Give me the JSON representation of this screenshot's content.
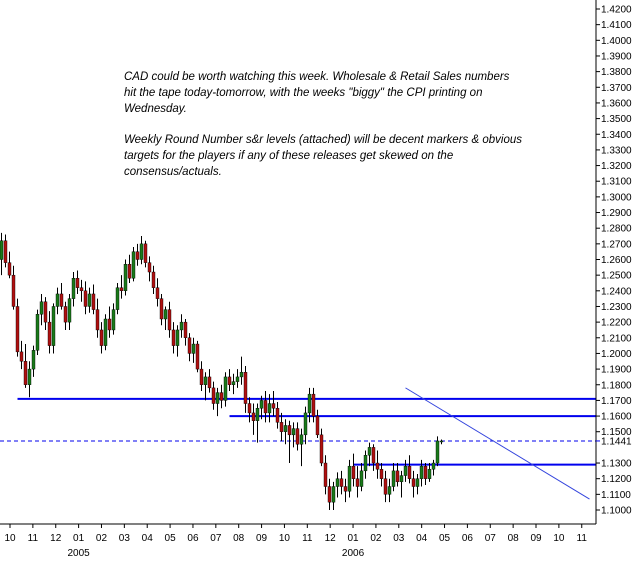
{
  "chart_data": {
    "type": "candlestick",
    "title": "",
    "notes": [
      "CAD could be worth watching this week. Wholesale & Retail Sales numbers hit the tape today-tomorrow, with the weeks \"biggy\" the CPI printing on Wednesday.",
      "Weekly Round Number s&r levels (attached) will be decent markers & obvious targets for the players if any of these releases get skewed on the consensus/actuals."
    ],
    "y_axis": {
      "side": "right",
      "ylim": [
        1.085,
        1.425
      ],
      "ticks": [
        "1.4200",
        "1.4100",
        "1.4000",
        "1.3900",
        "1.3800",
        "1.3700",
        "1.3600",
        "1.3500",
        "1.3400",
        "1.3300",
        "1.3200",
        "1.3100",
        "1.3000",
        "1.2900",
        "1.2800",
        "1.2700",
        "1.2600",
        "1.2500",
        "1.2400",
        "1.2300",
        "1.2200",
        "1.2100",
        "1.2000",
        "1.1900",
        "1.1800",
        "1.1700",
        "1.1600",
        "1.1500",
        "1.1441",
        "1.1300",
        "1.1200",
        "1.1100",
        "1.1000"
      ],
      "current_price": "1.1441"
    },
    "x_axis": {
      "months": [
        "10",
        "11",
        "12",
        "01",
        "02",
        "03",
        "04",
        "05",
        "06",
        "07",
        "08",
        "09",
        "10",
        "11",
        "12",
        "01",
        "02",
        "03",
        "04",
        "05",
        "06",
        "07",
        "08",
        "09",
        "10",
        "11"
      ],
      "years": [
        {
          "label": "2005",
          "month_index": 3
        },
        {
          "label": "2006",
          "month_index": 15
        }
      ]
    },
    "grid": false,
    "horizontal_levels": [
      {
        "value": 1.171,
        "from_bar": 4
      },
      {
        "value": 1.16,
        "from_bar": 57
      },
      {
        "value": 1.129,
        "from_bar": 88
      },
      {
        "value": 1.1441,
        "from_bar": 0,
        "style": "dashed",
        "label": "current"
      }
    ],
    "trendline": {
      "from": {
        "bar": 101,
        "value": 1.178
      },
      "to": {
        "bar": 147,
        "value": 1.107
      }
    },
    "colors": {
      "up": "#1a7a1a",
      "down": "#b01010",
      "level": "#0000ee",
      "trend": "#3344dd",
      "axis": "#000000"
    },
    "candles": [
      [
        1.26,
        1.277,
        1.25,
        1.272
      ],
      [
        1.272,
        1.276,
        1.255,
        1.258
      ],
      [
        1.258,
        1.265,
        1.248,
        1.25
      ],
      [
        1.25,
        1.256,
        1.228,
        1.23
      ],
      [
        1.23,
        1.235,
        1.198,
        1.201
      ],
      [
        1.201,
        1.208,
        1.19,
        1.195
      ],
      [
        1.195,
        1.206,
        1.178,
        1.18
      ],
      [
        1.18,
        1.195,
        1.172,
        1.19
      ],
      [
        1.19,
        1.205,
        1.185,
        1.202
      ],
      [
        1.202,
        1.228,
        1.199,
        1.225
      ],
      [
        1.225,
        1.238,
        1.218,
        1.233
      ],
      [
        1.233,
        1.236,
        1.215,
        1.22
      ],
      [
        1.22,
        1.227,
        1.2,
        1.205
      ],
      [
        1.205,
        1.232,
        1.2,
        1.23
      ],
      [
        1.23,
        1.242,
        1.225,
        1.238
      ],
      [
        1.238,
        1.245,
        1.228,
        1.23
      ],
      [
        1.23,
        1.233,
        1.215,
        1.22
      ],
      [
        1.22,
        1.238,
        1.215,
        1.235
      ],
      [
        1.235,
        1.252,
        1.23,
        1.248
      ],
      [
        1.248,
        1.253,
        1.238,
        1.242
      ],
      [
        1.242,
        1.247,
        1.233,
        1.24
      ],
      [
        1.24,
        1.246,
        1.225,
        1.23
      ],
      [
        1.23,
        1.242,
        1.226,
        1.238
      ],
      [
        1.238,
        1.244,
        1.225,
        1.228
      ],
      [
        1.228,
        1.235,
        1.21,
        1.215
      ],
      [
        1.215,
        1.22,
        1.2,
        1.205
      ],
      [
        1.205,
        1.225,
        1.202,
        1.222
      ],
      [
        1.222,
        1.23,
        1.21,
        1.215
      ],
      [
        1.215,
        1.232,
        1.212,
        1.228
      ],
      [
        1.228,
        1.245,
        1.225,
        1.242
      ],
      [
        1.242,
        1.25,
        1.235,
        1.24
      ],
      [
        1.24,
        1.26,
        1.237,
        1.257
      ],
      [
        1.257,
        1.263,
        1.245,
        1.248
      ],
      [
        1.248,
        1.268,
        1.246,
        1.265
      ],
      [
        1.265,
        1.27,
        1.256,
        1.26
      ],
      [
        1.26,
        1.275,
        1.257,
        1.27
      ],
      [
        1.27,
        1.272,
        1.255,
        1.258
      ],
      [
        1.258,
        1.262,
        1.246,
        1.252
      ],
      [
        1.252,
        1.256,
        1.238,
        1.242
      ],
      [
        1.242,
        1.248,
        1.23,
        1.235
      ],
      [
        1.235,
        1.238,
        1.218,
        1.222
      ],
      [
        1.222,
        1.23,
        1.215,
        1.228
      ],
      [
        1.228,
        1.233,
        1.21,
        1.215
      ],
      [
        1.215,
        1.22,
        1.2,
        1.205
      ],
      [
        1.205,
        1.218,
        1.198,
        1.215
      ],
      [
        1.215,
        1.225,
        1.21,
        1.22
      ],
      [
        1.22,
        1.222,
        1.205,
        1.21
      ],
      [
        1.21,
        1.213,
        1.195,
        1.2
      ],
      [
        1.2,
        1.21,
        1.194,
        1.206
      ],
      [
        1.206,
        1.208,
        1.188,
        1.19
      ],
      [
        1.19,
        1.195,
        1.176,
        1.18
      ],
      [
        1.18,
        1.188,
        1.17,
        1.185
      ],
      [
        1.185,
        1.19,
        1.175,
        1.178
      ],
      [
        1.178,
        1.182,
        1.164,
        1.168
      ],
      [
        1.168,
        1.178,
        1.16,
        1.175
      ],
      [
        1.175,
        1.18,
        1.165,
        1.17
      ],
      [
        1.17,
        1.188,
        1.166,
        1.185
      ],
      [
        1.185,
        1.19,
        1.176,
        1.18
      ],
      [
        1.18,
        1.187,
        1.174,
        1.182
      ],
      [
        1.182,
        1.19,
        1.178,
        1.185
      ],
      [
        1.185,
        1.198,
        1.18,
        1.188
      ],
      [
        1.188,
        1.192,
        1.162,
        1.168
      ],
      [
        1.168,
        1.172,
        1.156,
        1.162
      ],
      [
        1.162,
        1.168,
        1.148,
        1.157
      ],
      [
        1.157,
        1.168,
        1.143,
        1.165
      ],
      [
        1.165,
        1.173,
        1.158,
        1.17
      ],
      [
        1.17,
        1.176,
        1.156,
        1.162
      ],
      [
        1.162,
        1.174,
        1.156,
        1.168
      ],
      [
        1.168,
        1.176,
        1.16,
        1.165
      ],
      [
        1.165,
        1.169,
        1.152,
        1.156
      ],
      [
        1.156,
        1.162,
        1.144,
        1.15
      ],
      [
        1.15,
        1.158,
        1.142,
        1.154
      ],
      [
        1.154,
        1.157,
        1.13,
        1.148
      ],
      [
        1.148,
        1.156,
        1.14,
        1.152
      ],
      [
        1.152,
        1.156,
        1.138,
        1.142
      ],
      [
        1.142,
        1.152,
        1.128,
        1.148
      ],
      [
        1.148,
        1.166,
        1.142,
        1.162
      ],
      [
        1.162,
        1.178,
        1.156,
        1.174
      ],
      [
        1.174,
        1.178,
        1.156,
        1.16
      ],
      [
        1.16,
        1.164,
        1.146,
        1.148
      ],
      [
        1.148,
        1.152,
        1.128,
        1.13
      ],
      [
        1.13,
        1.135,
        1.11,
        1.115
      ],
      [
        1.115,
        1.12,
        1.1,
        1.105
      ],
      [
        1.105,
        1.118,
        1.1,
        1.115
      ],
      [
        1.115,
        1.124,
        1.108,
        1.12
      ],
      [
        1.12,
        1.125,
        1.11,
        1.115
      ],
      [
        1.115,
        1.12,
        1.105,
        1.112
      ],
      [
        1.112,
        1.132,
        1.108,
        1.128
      ],
      [
        1.128,
        1.136,
        1.115,
        1.12
      ],
      [
        1.12,
        1.128,
        1.108,
        1.115
      ],
      [
        1.115,
        1.13,
        1.112,
        1.125
      ],
      [
        1.125,
        1.138,
        1.12,
        1.135
      ],
      [
        1.135,
        1.143,
        1.128,
        1.14
      ],
      [
        1.14,
        1.142,
        1.125,
        1.13
      ],
      [
        1.13,
        1.138,
        1.12,
        1.126
      ],
      [
        1.126,
        1.13,
        1.115,
        1.12
      ],
      [
        1.12,
        1.125,
        1.105,
        1.11
      ],
      [
        1.11,
        1.12,
        1.105,
        1.115
      ],
      [
        1.115,
        1.13,
        1.112,
        1.125
      ],
      [
        1.125,
        1.13,
        1.115,
        1.118
      ],
      [
        1.118,
        1.125,
        1.108,
        1.122
      ],
      [
        1.122,
        1.132,
        1.118,
        1.128
      ],
      [
        1.128,
        1.135,
        1.117,
        1.12
      ],
      [
        1.12,
        1.125,
        1.108,
        1.115
      ],
      [
        1.115,
        1.123,
        1.11,
        1.12
      ],
      [
        1.12,
        1.132,
        1.115,
        1.128
      ],
      [
        1.128,
        1.13,
        1.116,
        1.12
      ],
      [
        1.12,
        1.13,
        1.118,
        1.126
      ],
      [
        1.126,
        1.132,
        1.122,
        1.13
      ],
      [
        1.13,
        1.147,
        1.128,
        1.1441
      ],
      [
        1.1441,
        1.145,
        1.142,
        1.1441
      ]
    ]
  }
}
